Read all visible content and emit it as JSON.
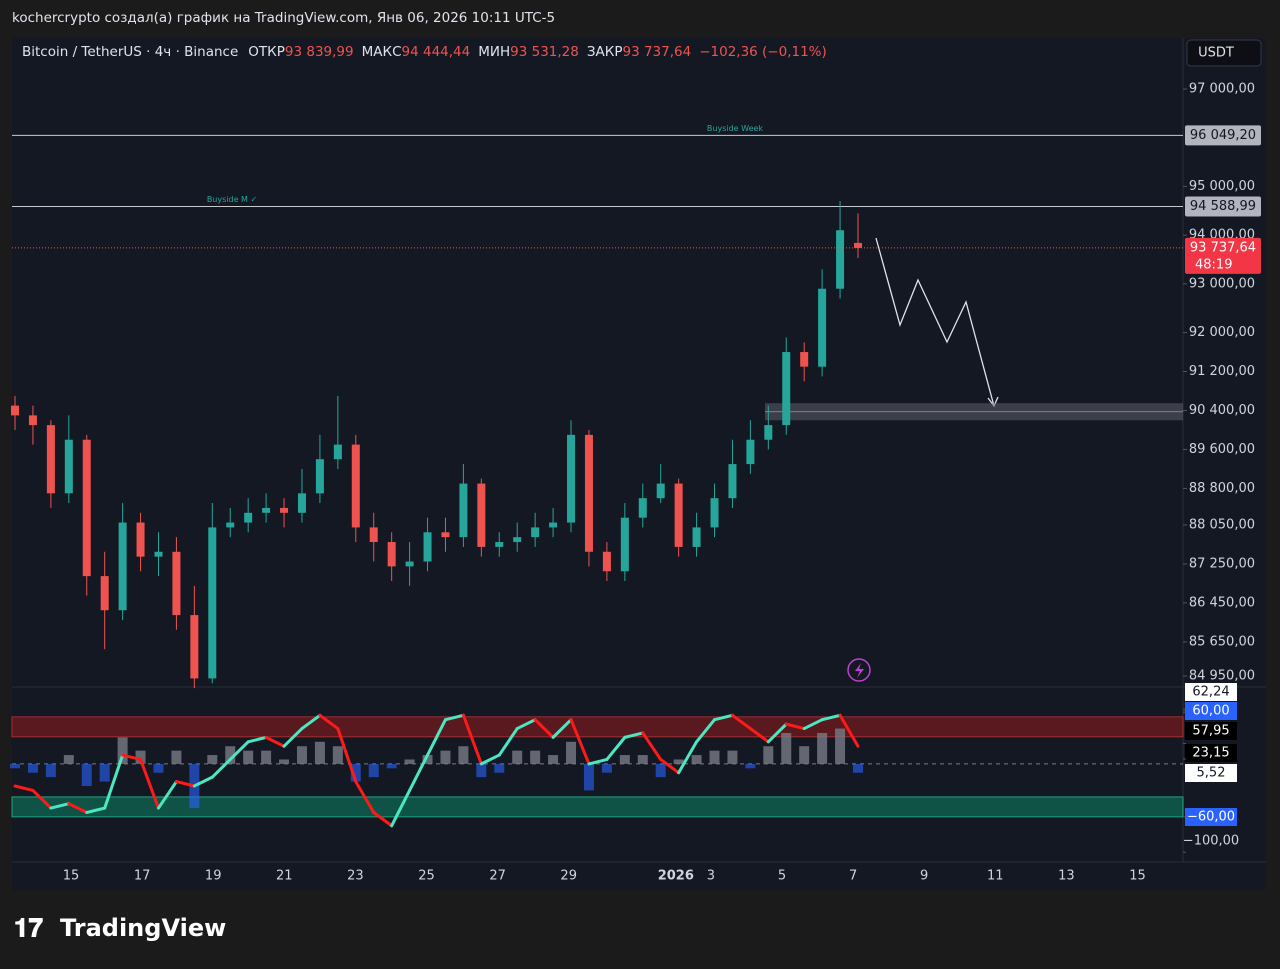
{
  "top_text": "kochercrypto создал(а) график на TradingView.com, Янв 06, 2026 10:11 UTC-5",
  "footer": "TradingView",
  "chart_data": [
    {
      "type": "candlestick",
      "title": "Bitcoin / TetherUS · 4ч · Binance",
      "header": [
        {
          "label": "ОТКР",
          "value": "93 839,99"
        },
        {
          "label": "МАКС",
          "value": "94 444,44"
        },
        {
          "label": "МИН",
          "value": "93 531,28"
        },
        {
          "label": "ЗАКР",
          "value": "93 737,64"
        }
      ],
      "change": "−102,36 (−0,11%)",
      "currency": "USDT",
      "up_color": "#26a69a",
      "down_color": "#ef5350",
      "open": [
        90500,
        90300,
        90100,
        88700,
        89800,
        87000,
        86300,
        88100,
        87400,
        87500,
        86200,
        84900,
        88000,
        88100,
        88300,
        88400,
        88300,
        88700,
        89400,
        89700,
        88000,
        87700,
        87200,
        87300,
        87900,
        87800,
        88900,
        87600,
        87700,
        87800,
        88000,
        88100,
        89900,
        87500,
        87100,
        88200,
        88600,
        88900,
        87600,
        88000,
        88600,
        89300,
        89800,
        90100,
        91600,
        91300,
        92900,
        93839.99
      ],
      "high": [
        90700,
        90500,
        90200,
        90300,
        89900,
        87500,
        88500,
        88300,
        87900,
        87800,
        86800,
        88500,
        88400,
        88600,
        88700,
        88600,
        89200,
        89900,
        90700,
        89900,
        88300,
        87900,
        87700,
        88200,
        88200,
        89300,
        89000,
        87900,
        88100,
        88300,
        88400,
        90200,
        90000,
        87700,
        88500,
        88900,
        89300,
        89000,
        88300,
        88900,
        89800,
        90200,
        90500,
        91900,
        91800,
        93300,
        94700,
        94444.44
      ],
      "low": [
        90000,
        89700,
        88400,
        88500,
        86600,
        85500,
        86100,
        87100,
        87000,
        85900,
        84700,
        84800,
        87800,
        87900,
        88100,
        88000,
        88100,
        88500,
        89200,
        87700,
        87300,
        86900,
        86800,
        87100,
        87500,
        87600,
        87400,
        87400,
        87500,
        87600,
        87800,
        87900,
        87200,
        86900,
        86900,
        88000,
        88500,
        87400,
        87400,
        87800,
        88400,
        89100,
        89600,
        89900,
        91000,
        91100,
        92700,
        93531.28
      ],
      "close": [
        90300,
        90100,
        88700,
        89800,
        87000,
        86300,
        88100,
        87400,
        87500,
        86200,
        84900,
        88000,
        88100,
        88300,
        88400,
        88300,
        88700,
        89400,
        89700,
        88000,
        87700,
        87200,
        87300,
        87900,
        87800,
        88900,
        87600,
        87700,
        87800,
        88000,
        88100,
        89900,
        87500,
        87100,
        88200,
        88600,
        88900,
        87600,
        88000,
        88600,
        89300,
        89800,
        90100,
        91600,
        91300,
        92900,
        94100,
        93737.64
      ],
      "ylim": [
        84724,
        98047
      ],
      "yticks": [
        {
          "value": 97000,
          "label": "97 000,00"
        },
        {
          "value": 95000,
          "label": "95 000,00"
        },
        {
          "value": 94000,
          "label": "94 000,00"
        },
        {
          "value": 93000,
          "label": "93 000,00"
        },
        {
          "value": 92000,
          "label": "92 000,00"
        },
        {
          "value": 91200,
          "label": "91 200,00"
        },
        {
          "value": 90400,
          "label": "90 400,00"
        },
        {
          "value": 89600,
          "label": "89 600,00"
        },
        {
          "value": 88800,
          "label": "88 800,00"
        },
        {
          "value": 88050,
          "label": "88 050,00"
        },
        {
          "value": 87250,
          "label": "87 250,00"
        },
        {
          "value": 86450,
          "label": "86 450,00"
        },
        {
          "value": 85650,
          "label": "85 650,00"
        },
        {
          "value": 84950,
          "label": "84 950,00"
        }
      ],
      "levels": [
        {
          "name": "Buyside Week",
          "value": 96049.2,
          "label": "96 049,20"
        },
        {
          "name": "Buyside M ✓",
          "value": 94588.99,
          "label": "94 588,99"
        }
      ],
      "last_price": {
        "value": 93737.64,
        "label": "93 737,64",
        "countdown": "48:19"
      },
      "zone": [
        90550,
        90200
      ],
      "x_labels": [
        "15",
        "17",
        "19",
        "21",
        "23",
        "25",
        "27",
        "29",
        "2026",
        "3",
        "5",
        "7",
        "9",
        "11",
        "13",
        "15"
      ]
    },
    {
      "type": "oscillator",
      "values": [
        -25,
        -30,
        -50,
        -45,
        -55,
        -50,
        10,
        5,
        -50,
        -20,
        -25,
        -15,
        5,
        25,
        30,
        20,
        40,
        55,
        40,
        -20,
        -55,
        -70,
        -30,
        10,
        50,
        55,
        0,
        10,
        40,
        50,
        30,
        50,
        0,
        5,
        30,
        35,
        5,
        -10,
        25,
        50,
        55,
        40,
        25,
        45,
        40,
        50,
        55,
        20
      ],
      "histogram": [
        -5,
        -10,
        -15,
        10,
        -25,
        -20,
        30,
        15,
        -10,
        15,
        -50,
        10,
        20,
        15,
        15,
        5,
        20,
        25,
        20,
        -20,
        -15,
        -5,
        5,
        10,
        15,
        20,
        -15,
        -10,
        15,
        15,
        10,
        25,
        -30,
        -10,
        10,
        10,
        -15,
        5,
        10,
        15,
        15,
        -5,
        20,
        35,
        20,
        35,
        40,
        -10
      ],
      "ylim": [
        -111,
        87
      ],
      "badges": [
        {
          "value": 62.24,
          "label": "62,24",
          "style": "light"
        },
        {
          "value": 60,
          "label": "60,00",
          "style": "blue"
        },
        {
          "value": 57.95,
          "label": "57,95",
          "style": "dark"
        },
        {
          "value": 23.15,
          "label": "23,15",
          "style": "dark"
        },
        {
          "value": 5.52,
          "label": "5,52",
          "style": "light"
        },
        {
          "value": -60,
          "label": "−60,00",
          "style": "blue"
        },
        {
          "value": -100,
          "label": "−100,00",
          "style": "plain"
        }
      ]
    }
  ]
}
